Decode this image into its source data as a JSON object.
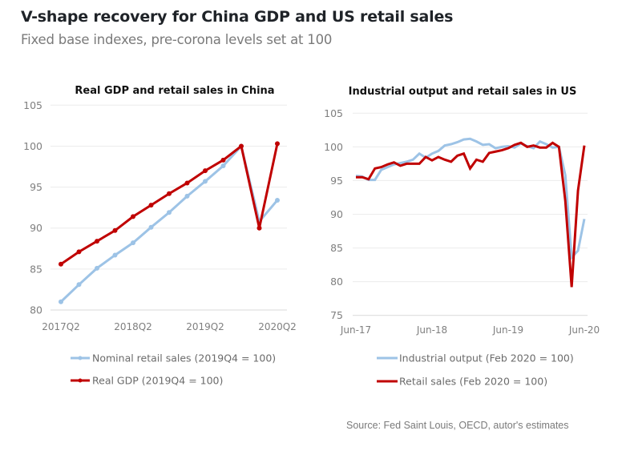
{
  "header": {
    "title": "V-shape recovery for China GDP and US retail sales",
    "subtitle": "Fixed base indexes, pre-corona levels set at 100"
  },
  "source": "Source: Fed Saint Louis, OECD, autor's estimates",
  "colors": {
    "red": "#C00000",
    "blue": "#9DC3E6",
    "grid": "#ececec",
    "axis": "#d9d9d9"
  },
  "chart_data": [
    {
      "type": "line",
      "title": "Real GDP and retail sales in China",
      "xlabel": "",
      "ylabel": "",
      "ylim": [
        80,
        105
      ],
      "yticks": [
        "80",
        "85",
        "90",
        "95",
        "100",
        "105"
      ],
      "x": [
        "2017Q2",
        "2017Q3",
        "2017Q4",
        "2018Q1",
        "2018Q2",
        "2018Q3",
        "2018Q4",
        "2019Q1",
        "2019Q2",
        "2019Q3",
        "2019Q4",
        "2020Q1",
        "2020Q2"
      ],
      "xtick_labels": [
        "2017Q2",
        "2018Q2",
        "2019Q2",
        "2020Q2"
      ],
      "grid": true,
      "legend_position": "bottom",
      "series": [
        {
          "name": "Nominal retail sales (2019Q4 = 100)",
          "color": "#9DC3E6",
          "markers": true,
          "values": [
            81.0,
            83.1,
            85.1,
            86.7,
            88.2,
            90.1,
            91.9,
            93.9,
            95.7,
            97.6,
            100.0,
            90.8,
            93.4
          ]
        },
        {
          "name": "Real GDP (2019Q4 = 100)",
          "color": "#C00000",
          "markers": true,
          "values": [
            85.6,
            87.1,
            88.4,
            89.7,
            91.4,
            92.8,
            94.2,
            95.5,
            97.0,
            98.3,
            100.0,
            90.0,
            100.3
          ]
        }
      ]
    },
    {
      "type": "line",
      "title": "Industrial output and retail sales in US",
      "xlabel": "",
      "ylabel": "",
      "ylim": [
        75,
        105
      ],
      "yticks": [
        "75",
        "80",
        "85",
        "90",
        "95",
        "100",
        "105"
      ],
      "x_start": "Jun-17",
      "x_end": "Jun-20",
      "x_frequency": "monthly",
      "xtick_labels": [
        "Jun-17",
        "Jun-18",
        "Jun-19",
        "Jun-20"
      ],
      "grid": true,
      "legend_position": "bottom",
      "series": [
        {
          "name": "Industrial output (Feb 2020 = 100)",
          "color": "#9DC3E6",
          "markers": false,
          "values": [
            95.7,
            95.6,
            95.1,
            95.1,
            96.6,
            97.0,
            97.4,
            97.6,
            97.8,
            98.1,
            99.0,
            98.4,
            99.0,
            99.4,
            100.2,
            100.4,
            100.7,
            101.1,
            101.2,
            100.8,
            100.3,
            100.4,
            99.8,
            100.0,
            100.1,
            99.9,
            100.5,
            100.1,
            99.8,
            100.8,
            100.4,
            99.9,
            100.0,
            95.8,
            83.6,
            84.6,
            89.3
          ]
        },
        {
          "name": "Retail sales (Feb 2020 = 100)",
          "color": "#C00000",
          "markers": false,
          "values": [
            95.5,
            95.5,
            95.2,
            96.8,
            97.0,
            97.4,
            97.7,
            97.2,
            97.5,
            97.5,
            97.5,
            98.5,
            98.0,
            98.5,
            98.1,
            97.8,
            98.7,
            99.0,
            96.8,
            98.1,
            97.8,
            99.1,
            99.3,
            99.5,
            99.8,
            100.3,
            100.6,
            100.0,
            100.2,
            99.9,
            99.9,
            100.6,
            100.0,
            92.0,
            79.2,
            93.5,
            100.2
          ]
        }
      ]
    }
  ]
}
